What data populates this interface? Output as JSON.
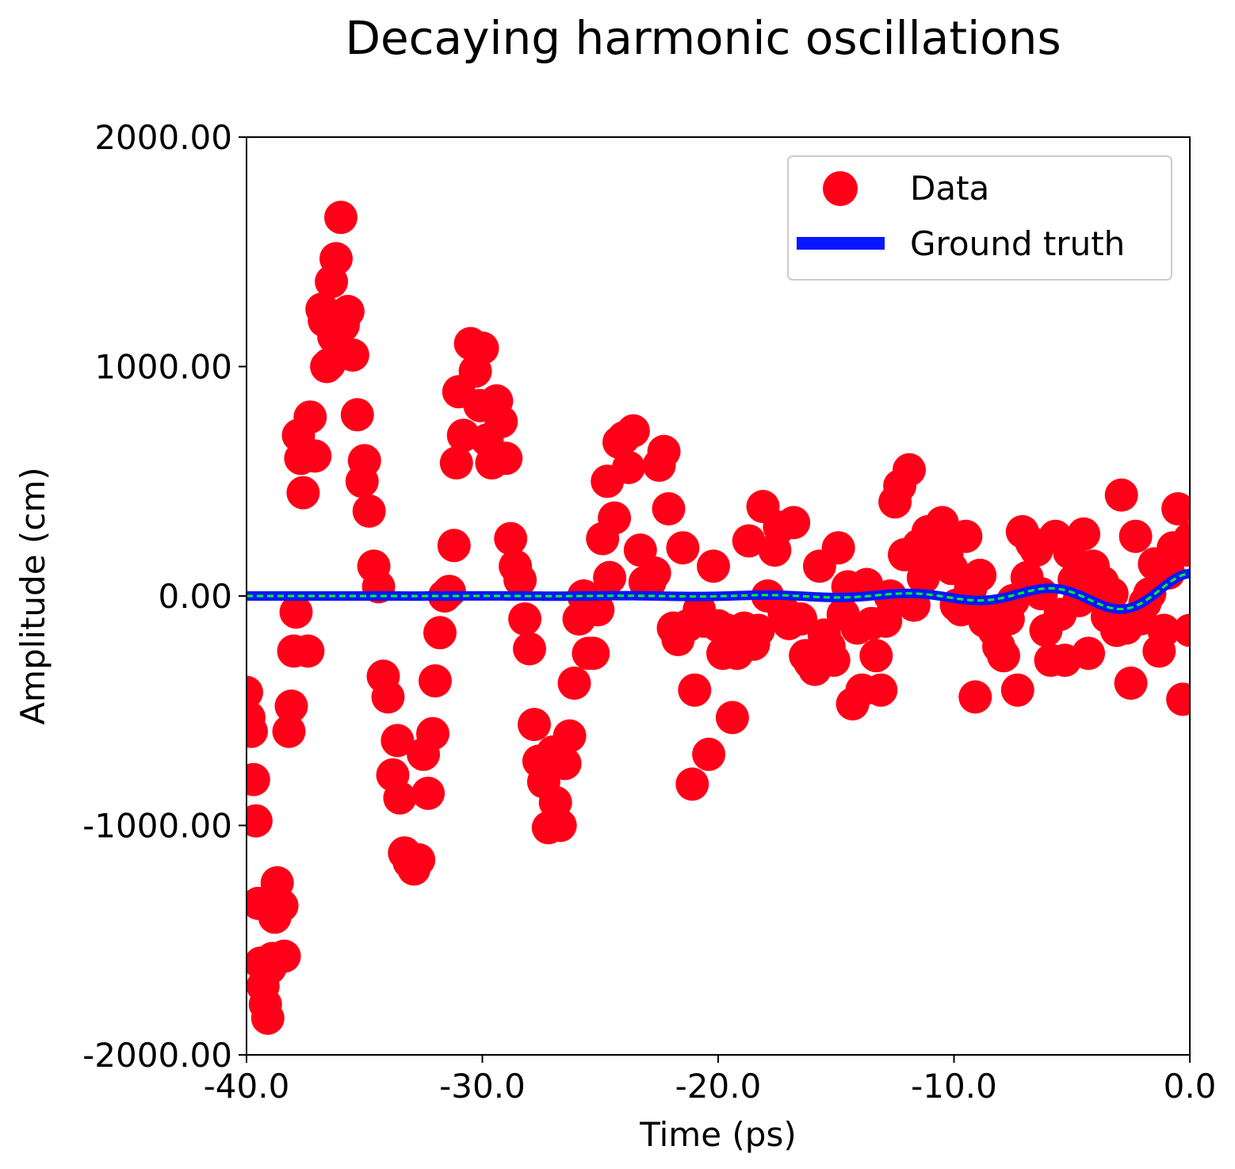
{
  "chart_data": {
    "type": "scatter",
    "title": "Decaying harmonic oscillations",
    "xlabel": "Time (ps)",
    "ylabel": "Amplitude (cm)",
    "xlim": [
      -40,
      0
    ],
    "ylim": [
      -2000,
      2000
    ],
    "xticks": [
      -40,
      -30,
      -20,
      -10,
      0
    ],
    "xtick_labels": [
      "-40.0",
      "-30.0",
      "-20.0",
      "-10.0",
      "0.0"
    ],
    "yticks": [
      -2000,
      -1000,
      0,
      1000,
      2000
    ],
    "ytick_labels": [
      "-2000.00",
      "-1000.00",
      "0.00",
      "1000.00",
      "2000.00"
    ],
    "grid": false,
    "legend_position": "top-right",
    "series": [
      {
        "name": "Data",
        "kind": "scatter",
        "color": "#ff0018",
        "points": [
          [
            -40.0,
            -420
          ],
          [
            -39.9,
            -530
          ],
          [
            -39.8,
            -590
          ],
          [
            -39.7,
            -800
          ],
          [
            -39.6,
            -980
          ],
          [
            -39.5,
            -1340
          ],
          [
            -39.4,
            -1600
          ],
          [
            -39.3,
            -1700
          ],
          [
            -39.2,
            -1780
          ],
          [
            -39.1,
            -1840
          ],
          [
            -39.0,
            -1620
          ],
          [
            -38.9,
            -1580
          ],
          [
            -38.8,
            -1400
          ],
          [
            -38.7,
            -1250
          ],
          [
            -38.5,
            -1350
          ],
          [
            -38.4,
            -1570
          ],
          [
            -38.2,
            -590
          ],
          [
            -38.1,
            -480
          ],
          [
            -38.0,
            -240
          ],
          [
            -37.9,
            -70
          ],
          [
            -37.8,
            700
          ],
          [
            -37.7,
            600
          ],
          [
            -37.6,
            450
          ],
          [
            -37.4,
            -240
          ],
          [
            -37.3,
            780
          ],
          [
            -37.1,
            610
          ],
          [
            -36.8,
            1250
          ],
          [
            -36.7,
            1200
          ],
          [
            -36.6,
            1000
          ],
          [
            -36.5,
            1010
          ],
          [
            -36.4,
            1370
          ],
          [
            -36.3,
            1130
          ],
          [
            -36.2,
            1470
          ],
          [
            -36.1,
            1150
          ],
          [
            -36.0,
            1650
          ],
          [
            -35.9,
            1180
          ],
          [
            -35.7,
            1240
          ],
          [
            -35.5,
            1050
          ],
          [
            -35.3,
            790
          ],
          [
            -35.1,
            500
          ],
          [
            -35.0,
            590
          ],
          [
            -34.8,
            370
          ],
          [
            -34.6,
            130
          ],
          [
            -34.4,
            40
          ],
          [
            -34.2,
            -350
          ],
          [
            -34.0,
            -440
          ],
          [
            -33.8,
            -780
          ],
          [
            -33.6,
            -630
          ],
          [
            -33.5,
            -880
          ],
          [
            -33.3,
            -1120
          ],
          [
            -33.1,
            -1160
          ],
          [
            -32.9,
            -1190
          ],
          [
            -32.7,
            -1150
          ],
          [
            -32.5,
            -690
          ],
          [
            -32.3,
            -860
          ],
          [
            -32.1,
            -600
          ],
          [
            -32.0,
            -370
          ],
          [
            -31.8,
            -160
          ],
          [
            -31.6,
            0
          ],
          [
            -31.4,
            20
          ],
          [
            -31.2,
            220
          ],
          [
            -31.1,
            580
          ],
          [
            -31.0,
            890
          ],
          [
            -30.8,
            700
          ],
          [
            -30.5,
            1100
          ],
          [
            -30.3,
            980
          ],
          [
            -30.1,
            830
          ],
          [
            -30.0,
            1080
          ],
          [
            -29.8,
            680
          ],
          [
            -29.6,
            580
          ],
          [
            -29.4,
            850
          ],
          [
            -29.2,
            760
          ],
          [
            -29.0,
            600
          ],
          [
            -28.8,
            250
          ],
          [
            -28.6,
            130
          ],
          [
            -28.4,
            70
          ],
          [
            -28.2,
            -100
          ],
          [
            -28.0,
            -230
          ],
          [
            -27.8,
            -560
          ],
          [
            -27.6,
            -720
          ],
          [
            -27.4,
            -810
          ],
          [
            -27.2,
            -1010
          ],
          [
            -27.0,
            -680
          ],
          [
            -26.9,
            -900
          ],
          [
            -26.7,
            -1000
          ],
          [
            -26.5,
            -730
          ],
          [
            -26.3,
            -610
          ],
          [
            -26.1,
            -380
          ],
          [
            -25.9,
            -100
          ],
          [
            -25.7,
            0
          ],
          [
            -25.5,
            -250
          ],
          [
            -25.3,
            -250
          ],
          [
            -25.1,
            -60
          ],
          [
            -24.9,
            250
          ],
          [
            -24.7,
            500
          ],
          [
            -24.6,
            80
          ],
          [
            -24.4,
            340
          ],
          [
            -24.2,
            670
          ],
          [
            -24.0,
            690
          ],
          [
            -23.8,
            560
          ],
          [
            -23.6,
            720
          ],
          [
            -23.3,
            200
          ],
          [
            -23.1,
            60
          ],
          [
            -22.9,
            60
          ],
          [
            -22.7,
            100
          ],
          [
            -22.5,
            570
          ],
          [
            -22.3,
            630
          ],
          [
            -22.1,
            380
          ],
          [
            -21.9,
            -140
          ],
          [
            -21.7,
            -190
          ],
          [
            -21.5,
            210
          ],
          [
            -21.3,
            -130
          ],
          [
            -21.1,
            -820
          ],
          [
            -21.0,
            -410
          ],
          [
            -20.8,
            -60
          ],
          [
            -20.6,
            -110
          ],
          [
            -20.4,
            -690
          ],
          [
            -20.2,
            130
          ],
          [
            -20.0,
            -130
          ],
          [
            -19.8,
            -250
          ],
          [
            -19.6,
            -150
          ],
          [
            -19.4,
            -530
          ],
          [
            -19.2,
            -250
          ],
          [
            -18.9,
            -140
          ],
          [
            -18.7,
            240
          ],
          [
            -18.5,
            -210
          ],
          [
            -18.3,
            -150
          ],
          [
            -18.1,
            390
          ],
          [
            -17.9,
            0
          ],
          [
            -17.6,
            200
          ],
          [
            -17.4,
            300
          ],
          [
            -17.2,
            -70
          ],
          [
            -17.0,
            -120
          ],
          [
            -16.8,
            320
          ],
          [
            -16.5,
            -100
          ],
          [
            -16.3,
            -260
          ],
          [
            -16.1,
            -290
          ],
          [
            -15.9,
            -320
          ],
          [
            -15.7,
            130
          ],
          [
            -15.5,
            -170
          ],
          [
            -15.3,
            -220
          ],
          [
            -15.1,
            -280
          ],
          [
            -14.9,
            210
          ],
          [
            -14.7,
            -80
          ],
          [
            -14.5,
            40
          ],
          [
            -14.3,
            -470
          ],
          [
            -14.1,
            -140
          ],
          [
            -13.9,
            -410
          ],
          [
            -13.7,
            50
          ],
          [
            -13.5,
            -120
          ],
          [
            -13.3,
            -260
          ],
          [
            -13.1,
            -410
          ],
          [
            -12.9,
            -110
          ],
          [
            -12.7,
            0
          ],
          [
            -12.5,
            410
          ],
          [
            -12.3,
            480
          ],
          [
            -12.1,
            180
          ],
          [
            -11.9,
            550
          ],
          [
            -11.7,
            -40
          ],
          [
            -11.5,
            220
          ],
          [
            -11.3,
            80
          ],
          [
            -11.1,
            280
          ],
          [
            -10.9,
            200
          ],
          [
            -10.7,
            240
          ],
          [
            -10.5,
            320
          ],
          [
            -10.3,
            180
          ],
          [
            -10.1,
            120
          ],
          [
            -9.9,
            -40
          ],
          [
            -9.7,
            -60
          ],
          [
            -9.5,
            260
          ],
          [
            -9.3,
            30
          ],
          [
            -9.1,
            -440
          ],
          [
            -8.9,
            90
          ],
          [
            -8.7,
            -110
          ],
          [
            -8.5,
            -90
          ],
          [
            -8.3,
            -150
          ],
          [
            -8.1,
            -220
          ],
          [
            -7.9,
            -260
          ],
          [
            -7.7,
            -100
          ],
          [
            -7.5,
            -20
          ],
          [
            -7.3,
            -410
          ],
          [
            -7.1,
            280
          ],
          [
            -6.9,
            80
          ],
          [
            -6.7,
            230
          ],
          [
            -6.5,
            200
          ],
          [
            -6.3,
            10
          ],
          [
            -6.1,
            -150
          ],
          [
            -5.9,
            -280
          ],
          [
            -5.7,
            260
          ],
          [
            -5.5,
            -80
          ],
          [
            -5.3,
            -280
          ],
          [
            -5.1,
            190
          ],
          [
            -4.9,
            70
          ],
          [
            -4.7,
            -20
          ],
          [
            -4.5,
            270
          ],
          [
            -4.3,
            -250
          ],
          [
            -4.1,
            130
          ],
          [
            -3.9,
            50
          ],
          [
            -3.7,
            60
          ],
          [
            -3.5,
            -90
          ],
          [
            -3.3,
            10
          ],
          [
            -3.1,
            -150
          ],
          [
            -2.9,
            440
          ],
          [
            -2.7,
            -140
          ],
          [
            -2.5,
            -380
          ],
          [
            -2.3,
            260
          ],
          [
            -2.1,
            -100
          ],
          [
            -1.9,
            -30
          ],
          [
            -1.7,
            10
          ],
          [
            -1.5,
            140
          ],
          [
            -1.3,
            -240
          ],
          [
            -1.1,
            -150
          ],
          [
            -0.9,
            100
          ],
          [
            -0.7,
            210
          ],
          [
            -0.5,
            380
          ],
          [
            -0.3,
            -450
          ],
          [
            -0.1,
            200
          ],
          [
            0.0,
            250
          ],
          [
            0.0,
            -150
          ]
        ]
      },
      {
        "name": "Ground truth",
        "kind": "line",
        "color": "#0a16ff",
        "overlay_color": "#00ff22",
        "function": "A*exp(k*t)*cos(w*(t - t0))",
        "params": {
          "A": 98.5,
          "k": 0.18,
          "w": 1.0472,
          "t0": -36.1
        }
      }
    ]
  }
}
